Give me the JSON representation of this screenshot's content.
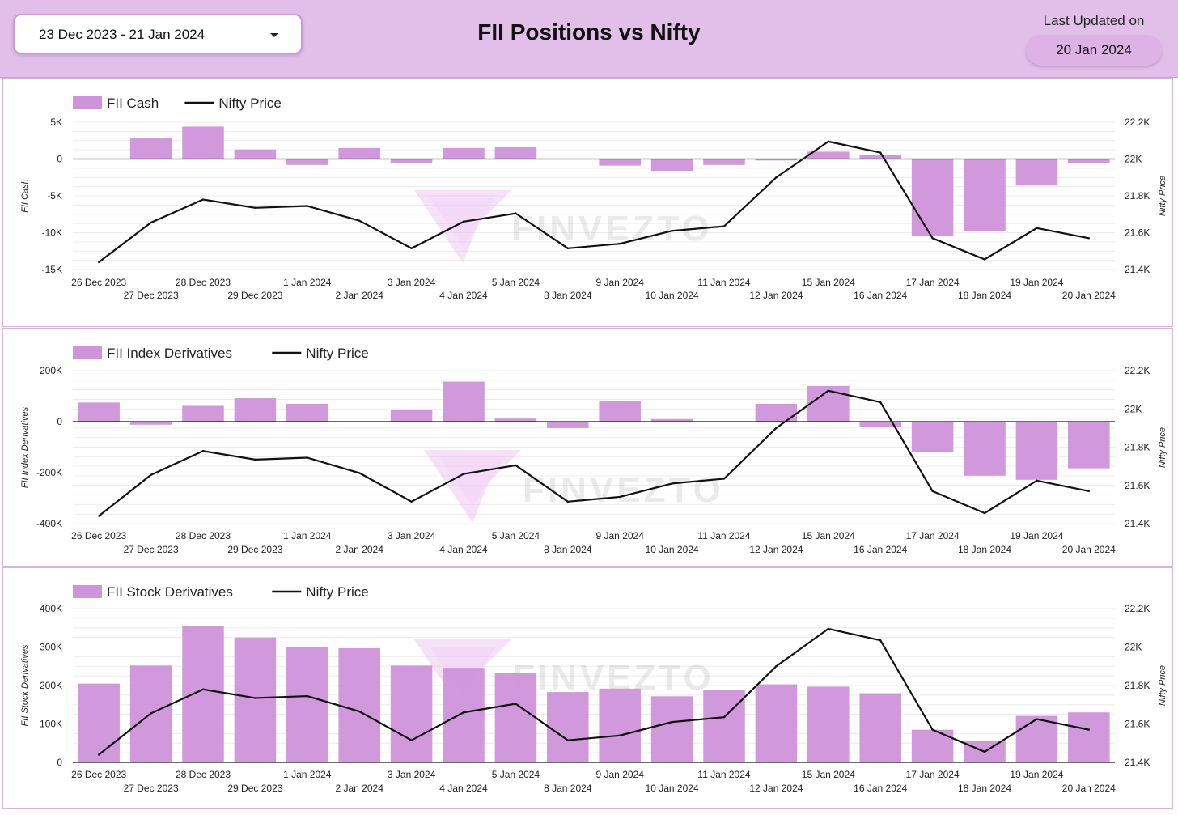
{
  "header": {
    "date_range": "23 Dec 2023 - 21 Jan 2024",
    "title": "FII Positions vs Nifty",
    "last_updated_label": "Last Updated on",
    "last_updated_value": "20 Jan 2024"
  },
  "watermark": "FINVEZTO",
  "colors": {
    "bar": "#cf93da",
    "line": "#111111",
    "header_bg": "#e2bfe9",
    "pill": "#dcb3e4"
  },
  "chart_data": [
    {
      "type": "bar",
      "combo_line": true,
      "categories": [
        "26 Dec 2023",
        "27 Dec 2023",
        "28 Dec 2023",
        "29 Dec 2023",
        "1 Jan 2024",
        "2 Jan 2024",
        "3 Jan 2024",
        "4 Jan 2024",
        "5 Jan 2024",
        "8 Jan 2024",
        "9 Jan 2024",
        "10 Jan 2024",
        "11 Jan 2024",
        "12 Jan 2024",
        "15 Jan 2024",
        "16 Jan 2024",
        "17 Jan 2024",
        "18 Jan 2024",
        "19 Jan 2024",
        "20 Jan 2024"
      ],
      "series": [
        {
          "name": "FII Cash",
          "type": "bar",
          "axis": "left",
          "values": [
            0,
            2800,
            4400,
            1300,
            -800,
            1500,
            -600,
            1500,
            1600,
            0,
            -900,
            -1600,
            -800,
            -200,
            1000,
            600,
            -10500,
            -9800,
            -3600,
            -500
          ]
        },
        {
          "name": "Nifty Price",
          "type": "line",
          "axis": "right",
          "values": [
            21440,
            21655,
            21780,
            21735,
            21745,
            21665,
            21515,
            21660,
            21705,
            21515,
            21540,
            21610,
            21635,
            21900,
            22095,
            22035,
            21570,
            21455,
            21625,
            21570
          ]
        }
      ],
      "yaxis_left": {
        "title": "FII Cash",
        "min": -15000,
        "max": 5000,
        "ticks": [
          5000,
          0,
          -5000,
          -10000,
          -15000
        ],
        "tick_labels": [
          "5K",
          "0",
          "-5K",
          "-10K",
          "-15K"
        ]
      },
      "yaxis_right": {
        "title": "Nifty Price",
        "min": 21400,
        "max": 22200,
        "ticks": [
          22200,
          22000,
          21800,
          21600,
          21400
        ],
        "tick_labels": [
          "22.2K",
          "22K",
          "21.8K",
          "21.6K",
          "21.4K"
        ]
      },
      "legend_position": "top-left",
      "grid": true
    },
    {
      "type": "bar",
      "combo_line": true,
      "categories": [
        "26 Dec 2023",
        "27 Dec 2023",
        "28 Dec 2023",
        "29 Dec 2023",
        "1 Jan 2024",
        "2 Jan 2024",
        "3 Jan 2024",
        "4 Jan 2024",
        "5 Jan 2024",
        "8 Jan 2024",
        "9 Jan 2024",
        "10 Jan 2024",
        "11 Jan 2024",
        "12 Jan 2024",
        "15 Jan 2024",
        "16 Jan 2024",
        "17 Jan 2024",
        "18 Jan 2024",
        "19 Jan 2024",
        "20 Jan 2024"
      ],
      "series": [
        {
          "name": "FII Index Derivatives",
          "type": "bar",
          "axis": "left",
          "values": [
            75000,
            -12000,
            62000,
            92000,
            70000,
            0,
            48000,
            157000,
            12000,
            -25000,
            82000,
            10000,
            0,
            70000,
            140000,
            -20000,
            -118000,
            -212000,
            -228000,
            -183000
          ]
        },
        {
          "name": "Nifty Price",
          "type": "line",
          "axis": "right",
          "values": [
            21440,
            21655,
            21780,
            21735,
            21745,
            21665,
            21515,
            21660,
            21705,
            21515,
            21540,
            21610,
            21635,
            21900,
            22095,
            22035,
            21570,
            21455,
            21625,
            21570
          ]
        }
      ],
      "yaxis_left": {
        "title": "FII Index Derivatives",
        "min": -400000,
        "max": 200000,
        "ticks": [
          200000,
          0,
          -200000,
          -400000
        ],
        "tick_labels": [
          "200K",
          "0",
          "-200K",
          "-400K"
        ]
      },
      "yaxis_right": {
        "title": "Nifty Price",
        "min": 21400,
        "max": 22200,
        "ticks": [
          22200,
          22000,
          21800,
          21600,
          21400
        ],
        "tick_labels": [
          "22.2K",
          "22K",
          "21.8K",
          "21.6K",
          "21.4K"
        ]
      },
      "legend_position": "top-left",
      "grid": true
    },
    {
      "type": "bar",
      "combo_line": true,
      "categories": [
        "26 Dec 2023",
        "27 Dec 2023",
        "28 Dec 2023",
        "29 Dec 2023",
        "1 Jan 2024",
        "2 Jan 2024",
        "3 Jan 2024",
        "4 Jan 2024",
        "5 Jan 2024",
        "8 Jan 2024",
        "9 Jan 2024",
        "10 Jan 2024",
        "11 Jan 2024",
        "12 Jan 2024",
        "15 Jan 2024",
        "16 Jan 2024",
        "17 Jan 2024",
        "18 Jan 2024",
        "19 Jan 2024",
        "20 Jan 2024"
      ],
      "series": [
        {
          "name": "FII Stock Derivatives",
          "type": "bar",
          "axis": "left",
          "values": [
            205000,
            252000,
            355000,
            325000,
            300000,
            297000,
            252000,
            246000,
            232000,
            183000,
            192000,
            172000,
            188000,
            203000,
            197000,
            180000,
            85000,
            57000,
            121000,
            130000
          ]
        },
        {
          "name": "Nifty Price",
          "type": "line",
          "axis": "right",
          "values": [
            21440,
            21655,
            21780,
            21735,
            21745,
            21665,
            21515,
            21660,
            21705,
            21515,
            21540,
            21610,
            21635,
            21900,
            22095,
            22035,
            21570,
            21455,
            21625,
            21570
          ]
        }
      ],
      "yaxis_left": {
        "title": "FII Stock Derivatives",
        "min": 0,
        "max": 400000,
        "ticks": [
          400000,
          300000,
          200000,
          100000,
          0
        ],
        "tick_labels": [
          "400K",
          "300K",
          "200K",
          "100K",
          "0"
        ]
      },
      "yaxis_right": {
        "title": "Nifty Price",
        "min": 21400,
        "max": 22200,
        "ticks": [
          22200,
          22000,
          21800,
          21600,
          21400
        ],
        "tick_labels": [
          "22.2K",
          "22K",
          "21.8K",
          "21.6K",
          "21.4K"
        ]
      },
      "legend_position": "top-left",
      "grid": true
    }
  ]
}
